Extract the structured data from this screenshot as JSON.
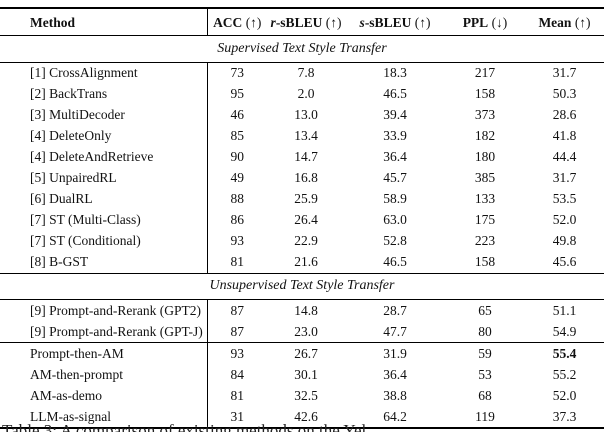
{
  "table": {
    "columns": [
      {
        "label": "Method"
      },
      {
        "label": "ACC",
        "suffix": " (↑)"
      },
      {
        "italic": "r",
        "label": "-sBLEU",
        "suffix": " (↑)"
      },
      {
        "italic": "s",
        "label": "-sBLEU",
        "suffix": " (↑)"
      },
      {
        "label": "PPL",
        "suffix": " (↓)"
      },
      {
        "label": "Mean",
        "suffix": " (↑)"
      }
    ],
    "sections": [
      {
        "title": "Supervised Text Style Transfer",
        "groups": [
          {
            "rows": [
              {
                "ref": "[1]",
                "name": "CrossAlignment",
                "values": [
                  "73",
                  "7.8",
                  "18.3",
                  "217",
                  "31.7"
                ]
              },
              {
                "ref": "[2]",
                "name": "BackTrans",
                "values": [
                  "95",
                  "2.0",
                  "46.5",
                  "158",
                  "50.3"
                ]
              },
              {
                "ref": "[3]",
                "name": "MultiDecoder",
                "values": [
                  "46",
                  "13.0",
                  "39.4",
                  "373",
                  "28.6"
                ]
              },
              {
                "ref": "[4]",
                "name": "DeleteOnly",
                "values": [
                  "85",
                  "13.4",
                  "33.9",
                  "182",
                  "41.8"
                ]
              },
              {
                "ref": "[4]",
                "name": "DeleteAndRetrieve",
                "values": [
                  "90",
                  "14.7",
                  "36.4",
                  "180",
                  "44.4"
                ]
              },
              {
                "ref": "[5]",
                "name": "UnpairedRL",
                "values": [
                  "49",
                  "16.8",
                  "45.7",
                  "385",
                  "31.7"
                ]
              },
              {
                "ref": "[6]",
                "name": "DualRL",
                "values": [
                  "88",
                  "25.9",
                  "58.9",
                  "133",
                  "53.5"
                ]
              },
              {
                "ref": "[7]",
                "name": "ST (Multi-Class)",
                "values": [
                  "86",
                  "26.4",
                  "63.0",
                  "175",
                  "52.0"
                ]
              },
              {
                "ref": "[7]",
                "name": "ST (Conditional)",
                "values": [
                  "93",
                  "22.9",
                  "52.8",
                  "223",
                  "49.8"
                ]
              },
              {
                "ref": "[8]",
                "name": "B-GST",
                "values": [
                  "81",
                  "21.6",
                  "46.5",
                  "158",
                  "45.6"
                ]
              }
            ]
          }
        ]
      },
      {
        "title": "Unsupervised Text Style Transfer",
        "groups": [
          {
            "rows": [
              {
                "ref": "[9]",
                "name": "Prompt-and-Rerank (GPT2)",
                "values": [
                  "87",
                  "14.8",
                  "28.7",
                  "65",
                  "51.1"
                ]
              },
              {
                "ref": "[9]",
                "name": "Prompt-and-Rerank (GPT-J)",
                "values": [
                  "87",
                  "23.0",
                  "47.7",
                  "80",
                  "54.9"
                ]
              }
            ]
          },
          {
            "rows": [
              {
                "ref": "",
                "name": "Prompt-then-AM",
                "values": [
                  "93",
                  "26.7",
                  "31.9",
                  "59",
                  "55.4"
                ],
                "bold_values": [
                  4
                ]
              },
              {
                "ref": "",
                "name": "AM-then-prompt",
                "values": [
                  "84",
                  "30.1",
                  "36.4",
                  "53",
                  "55.2"
                ]
              },
              {
                "ref": "",
                "name": "AM-as-demo",
                "values": [
                  "81",
                  "32.5",
                  "38.8",
                  "68",
                  "52.0"
                ]
              },
              {
                "ref": "",
                "name": "LLM-as-signal",
                "values": [
                  "31",
                  "42.6",
                  "64.2",
                  "119",
                  "37.3"
                ]
              }
            ]
          }
        ]
      }
    ]
  },
  "caption": {
    "fragment": "Table 3: A comparison of existing methods on the Yel"
  }
}
